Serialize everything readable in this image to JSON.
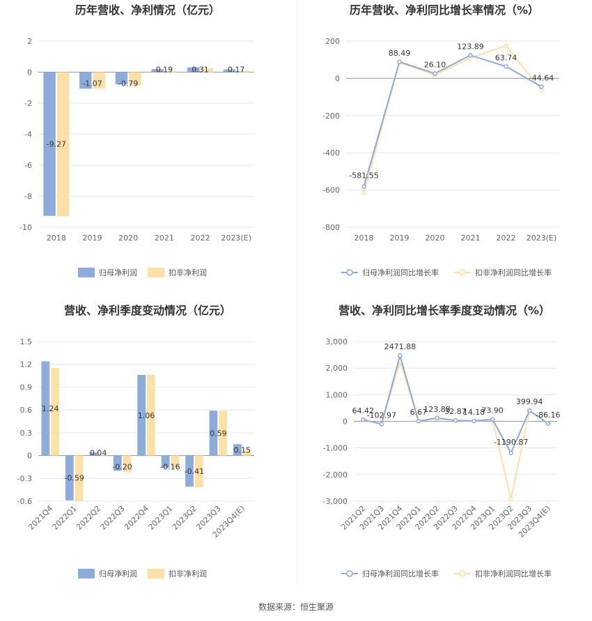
{
  "colors": {
    "primary": "#8eacd9",
    "secondary": "#fde0a8"
  },
  "source": "数据来源：恒生聚源",
  "chart_data": [
    {
      "type": "bar",
      "title": "历年营收、净利情况（亿元）",
      "categories": [
        "2018",
        "2019",
        "2020",
        "2021",
        "2022",
        "2023(E)"
      ],
      "series": [
        {
          "name": "归母净利润",
          "values": [
            -9.27,
            -1.07,
            -0.79,
            0.19,
            0.31,
            0.17
          ],
          "labels": [
            "-9.27",
            "-1.07",
            "-0.79",
            "0.19",
            "0.31",
            "0.17"
          ]
        },
        {
          "name": "扣非净利润",
          "values": [
            -9.3,
            -1.05,
            -0.85,
            0.05,
            0.25,
            0.1
          ]
        }
      ],
      "yticks": [
        "2",
        "0",
        "-2",
        "-4",
        "-6",
        "-8",
        "-10"
      ],
      "ylim": [
        -10,
        2
      ],
      "grid": true,
      "legend": "bottom"
    },
    {
      "type": "line",
      "title": "历年营收、净利同比增长率情况（%）",
      "categories": [
        "2018",
        "2019",
        "2020",
        "2021",
        "2022",
        "2023(E)"
      ],
      "series": [
        {
          "name": "归母净利润同比增长率",
          "values": [
            -581.55,
            88.49,
            26.1,
            123.89,
            63.74,
            -44.64
          ],
          "labels": [
            "-581.55",
            "88.49",
            "26.10",
            "123.89",
            "63.74",
            "-44.64"
          ]
        },
        {
          "name": "扣非净利润同比增长率",
          "values": [
            -615,
            85,
            18,
            110,
            175,
            -65
          ]
        }
      ],
      "yticks": [
        "200",
        "0",
        "-200",
        "-400",
        "-600",
        "-800"
      ],
      "ylim": [
        -800,
        200
      ],
      "grid": true,
      "legend": "bottom"
    },
    {
      "type": "bar",
      "title": "营收、净利季度变动情况（亿元）",
      "categories": [
        "2021Q4",
        "2022Q1",
        "2022Q2",
        "2022Q3",
        "2022Q4",
        "2023Q1",
        "2023Q2",
        "2023Q3",
        "2023Q4(E)"
      ],
      "series": [
        {
          "name": "归母净利润",
          "values": [
            1.24,
            -0.59,
            0.04,
            -0.2,
            1.06,
            -0.16,
            -0.41,
            0.59,
            0.15
          ],
          "labels": [
            "1.24",
            "-0.59",
            "0.04",
            "-0.20",
            "1.06",
            "-0.16",
            "-0.41",
            "0.59",
            "0.15"
          ]
        },
        {
          "name": "扣非净利润",
          "values": [
            1.15,
            -0.6,
            0.01,
            -0.22,
            1.06,
            -0.16,
            -0.42,
            0.59,
            0.07
          ]
        }
      ],
      "yticks": [
        "1.5",
        "1.2",
        "0.9",
        "0.6",
        "0.3",
        "0",
        "-0.3",
        "-0.6"
      ],
      "ylim": [
        -0.6,
        1.5
      ],
      "grid": true,
      "legend": "bottom"
    },
    {
      "type": "line",
      "title": "营收、净利同比增长率季度变动情况（%）",
      "categories": [
        "2021Q2",
        "2021Q3",
        "2021Q4",
        "2022Q1",
        "2022Q2",
        "2022Q3",
        "2022Q4",
        "2023Q1",
        "2023Q2",
        "2023Q3",
        "2023Q4(E)"
      ],
      "series": [
        {
          "name": "归母净利润同比增长率",
          "values": [
            64.42,
            -102.97,
            2471.88,
            6.67,
            123.88,
            32.87,
            14.18,
            73.9,
            -1190.87,
            399.94,
            -86.16
          ],
          "labels": [
            "64.42",
            "-102.97",
            "2471.88",
            "6.67",
            "123.88",
            "32.87",
            "14.18",
            "73.90",
            "-1190.87",
            "399.94",
            "-86.16"
          ]
        },
        {
          "name": "扣非净利润同比增长率",
          "values": [
            60,
            -110,
            2250,
            5,
            110,
            28,
            12,
            60,
            -2920,
            380,
            -60
          ]
        }
      ],
      "yticks": [
        "3,000",
        "2,000",
        "1,000",
        "0",
        "-1,000",
        "-2,000",
        "-3,000"
      ],
      "ylim": [
        -3000,
        3000
      ],
      "grid": true,
      "legend": "bottom"
    }
  ]
}
